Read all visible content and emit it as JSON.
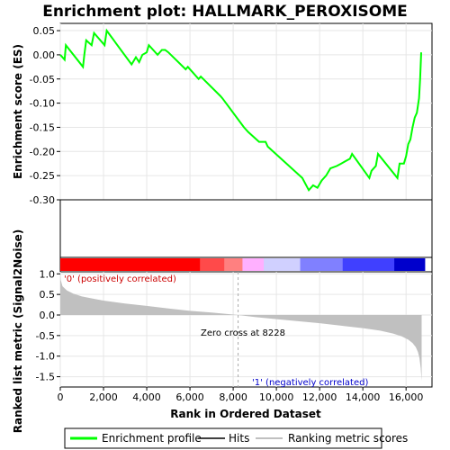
{
  "title": "Enrichment plot: HALLMARK_PEROXISOME",
  "chart_data": [
    {
      "type": "line",
      "name": "enrichment-score",
      "ylabel": "Enrichment score (ES)",
      "ylim": [
        -0.3,
        0.065
      ],
      "yticks": [
        0.05,
        0.0,
        -0.05,
        -0.1,
        -0.15,
        -0.2,
        -0.25,
        -0.3
      ],
      "ytick_labels": [
        "0.05",
        "0.00",
        "-0.05",
        "-0.10",
        "-0.15",
        "-0.20",
        "-0.25",
        "-0.30"
      ],
      "xlim": [
        0,
        17200
      ],
      "grid": true,
      "series": [
        {
          "name": "Enrichment profile",
          "color": "#00ff00",
          "x": [
            0,
            200,
            260,
            1050,
            1110,
            1200,
            1450,
            1560,
            2050,
            2150,
            3300,
            3500,
            3650,
            3800,
            4000,
            4100,
            4500,
            4700,
            4850,
            5000,
            5800,
            5900,
            6400,
            6500,
            7400,
            7500,
            8500,
            8700,
            9200,
            9500,
            9600,
            11200,
            11500,
            11700,
            11900,
            12100,
            12300,
            12500,
            12800,
            13000,
            13200,
            13400,
            13500,
            14300,
            14400,
            14600,
            14700,
            15600,
            15700,
            15900,
            16000,
            16100,
            16200,
            16300,
            16400,
            16500,
            16600,
            16650,
            16700
          ],
          "y": [
            0.0,
            -0.01,
            0.02,
            -0.025,
            0.0,
            0.03,
            0.02,
            0.045,
            0.02,
            0.05,
            -0.02,
            -0.005,
            -0.015,
            0.0,
            0.005,
            0.02,
            0.0,
            0.01,
            0.01,
            0.005,
            -0.03,
            -0.025,
            -0.05,
            -0.045,
            -0.085,
            -0.09,
            -0.15,
            -0.16,
            -0.18,
            -0.18,
            -0.19,
            -0.255,
            -0.28,
            -0.27,
            -0.275,
            -0.26,
            -0.25,
            -0.235,
            -0.23,
            -0.225,
            -0.22,
            -0.215,
            -0.205,
            -0.255,
            -0.24,
            -0.23,
            -0.205,
            -0.255,
            -0.225,
            -0.225,
            -0.21,
            -0.185,
            -0.175,
            -0.15,
            -0.13,
            -0.12,
            -0.09,
            -0.05,
            0.005
          ]
        }
      ],
      "hits": [
        170,
        1080,
        1150,
        1200,
        1260,
        1480,
        1560,
        1600,
        2050,
        2120,
        3350,
        3520,
        3680,
        3820,
        3950,
        4050,
        4120,
        4460,
        4620,
        4720,
        4880,
        5000,
        5750,
        5880,
        6350,
        6420,
        6500,
        6900,
        7000,
        7350,
        7420,
        7480,
        7520,
        7620,
        8380,
        8520,
        8600,
        8800,
        9000,
        9060,
        9120,
        9180,
        9240,
        9320,
        9400,
        9480,
        9560,
        10050,
        10150,
        10950,
        11050,
        11650,
        11750,
        11900,
        12000,
        12050,
        12100,
        12180,
        12250,
        12350,
        12450,
        12550,
        12650,
        12750,
        12850,
        13000,
        13250,
        13350,
        13450,
        14150,
        14550,
        14650,
        15550,
        15650,
        15850,
        16050,
        16150,
        16250,
        16350,
        16420,
        16480,
        16550,
        16600,
        16650,
        16700
      ]
    },
    {
      "type": "area",
      "name": "ranked-list-metric",
      "ylabel": "Ranked list metric (Signal2Noise)",
      "xlabel": "Rank in Ordered Dataset",
      "xlim": [
        0,
        17200
      ],
      "xticks": [
        0,
        2000,
        4000,
        6000,
        8000,
        10000,
        12000,
        14000,
        16000
      ],
      "xtick_labels": [
        "0",
        "2,000",
        "4,000",
        "6,000",
        "8,000",
        "10,000",
        "12,000",
        "14,000",
        "16,000"
      ],
      "ylim": [
        -1.75,
        1.05
      ],
      "yticks": [
        1.0,
        0.5,
        0.0,
        -0.5,
        -1.0,
        -1.5
      ],
      "ytick_labels": [
        "1.0",
        "0.5",
        "0.0",
        "-0.5",
        "-1.0",
        "-1.5"
      ],
      "grid": true,
      "series": [
        {
          "name": "Ranking metric scores",
          "color": "#c0c0c0",
          "x": [
            0,
            20,
            100,
            300,
            600,
            1000,
            1500,
            2000,
            3000,
            4000,
            5000,
            6000,
            7000,
            8228,
            9000,
            10000,
            11000,
            12000,
            13000,
            14000,
            14800,
            15400,
            15800,
            16100,
            16300,
            16450,
            16550,
            16620,
            16680,
            16720
          ],
          "y": [
            1.0,
            0.85,
            0.7,
            0.6,
            0.52,
            0.45,
            0.4,
            0.35,
            0.28,
            0.22,
            0.16,
            0.1,
            0.06,
            0.0,
            -0.05,
            -0.1,
            -0.15,
            -0.2,
            -0.26,
            -0.32,
            -0.38,
            -0.45,
            -0.52,
            -0.6,
            -0.68,
            -0.78,
            -0.9,
            -1.05,
            -1.3,
            -1.6
          ]
        }
      ],
      "zero_cross": 8228
    }
  ],
  "color_bar": {
    "colors": [
      "#ff0000",
      "#ff4a4a",
      "#ff8080",
      "#ffb0ff",
      "#d0d0ff",
      "#8080ff",
      "#4040ff",
      "#0000cc"
    ]
  },
  "annotations": {
    "positive": "'0' (positively correlated)",
    "negative": "'1' (negatively correlated)",
    "zero_cross": "Zero cross at 8228"
  },
  "legend": {
    "items": [
      {
        "label": "Enrichment profile",
        "color": "#00ff00"
      },
      {
        "label": "Hits",
        "color": "#000000"
      },
      {
        "label": "Ranking metric scores",
        "color": "#c0c0c0"
      }
    ]
  }
}
